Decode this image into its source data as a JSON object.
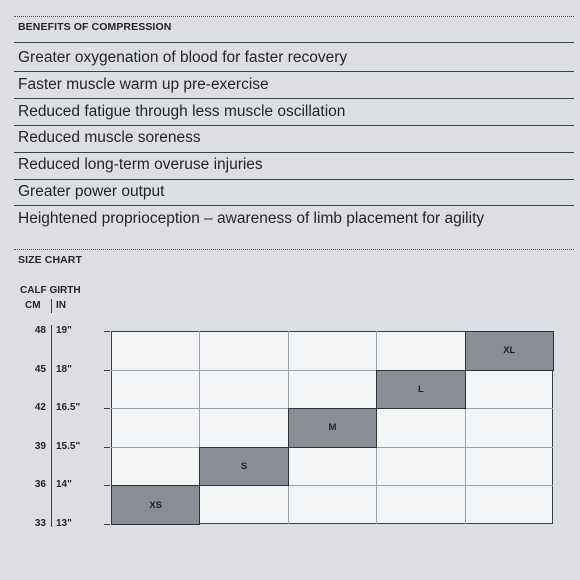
{
  "benefits": {
    "title": "BENEFITS OF COMPRESSION",
    "items": [
      "Greater oxygenation of blood for faster recovery",
      "Faster muscle warm up pre-exercise",
      "Reduced fatigue through less muscle oscillation",
      "Reduced muscle soreness",
      "Reduced long-term overuse injuries",
      "Greater power output",
      "Heightened proprioception – awareness of limb placement for agility"
    ]
  },
  "size_chart": {
    "title": "SIZE CHART",
    "axis_title": "CALF GIRTH",
    "col_cm": "CM",
    "col_in": "IN",
    "ticks_cm": [
      "48",
      "45",
      "42",
      "39",
      "36",
      "33"
    ],
    "ticks_in": [
      "19\"",
      "18\"",
      "16.5\"",
      "15.5\"",
      "14\"",
      "13\""
    ],
    "sizes": [
      "XS",
      "S",
      "M",
      "L",
      "XL"
    ]
  },
  "chart_data": {
    "type": "table",
    "title": "SIZE CHART",
    "ylabel": "CALF GIRTH",
    "y_ticks_cm": [
      48,
      45,
      42,
      39,
      36,
      33
    ],
    "y_ticks_in": [
      "19\"",
      "18\"",
      "16.5\"",
      "15.5\"",
      "14\"",
      "13\""
    ],
    "rows": [
      {
        "size": "XS",
        "calf_cm": [
          33,
          36
        ],
        "calf_in": [
          "13\"",
          "14\""
        ]
      },
      {
        "size": "S",
        "calf_cm": [
          36,
          39
        ],
        "calf_in": [
          "14\"",
          "15.5\""
        ]
      },
      {
        "size": "M",
        "calf_cm": [
          39,
          42
        ],
        "calf_in": [
          "15.5\"",
          "16.5\""
        ]
      },
      {
        "size": "L",
        "calf_cm": [
          42,
          45
        ],
        "calf_in": [
          "16.5\"",
          "18\""
        ]
      },
      {
        "size": "XL",
        "calf_cm": [
          45,
          48
        ],
        "calf_in": [
          "18\"",
          "19\""
        ]
      }
    ]
  }
}
